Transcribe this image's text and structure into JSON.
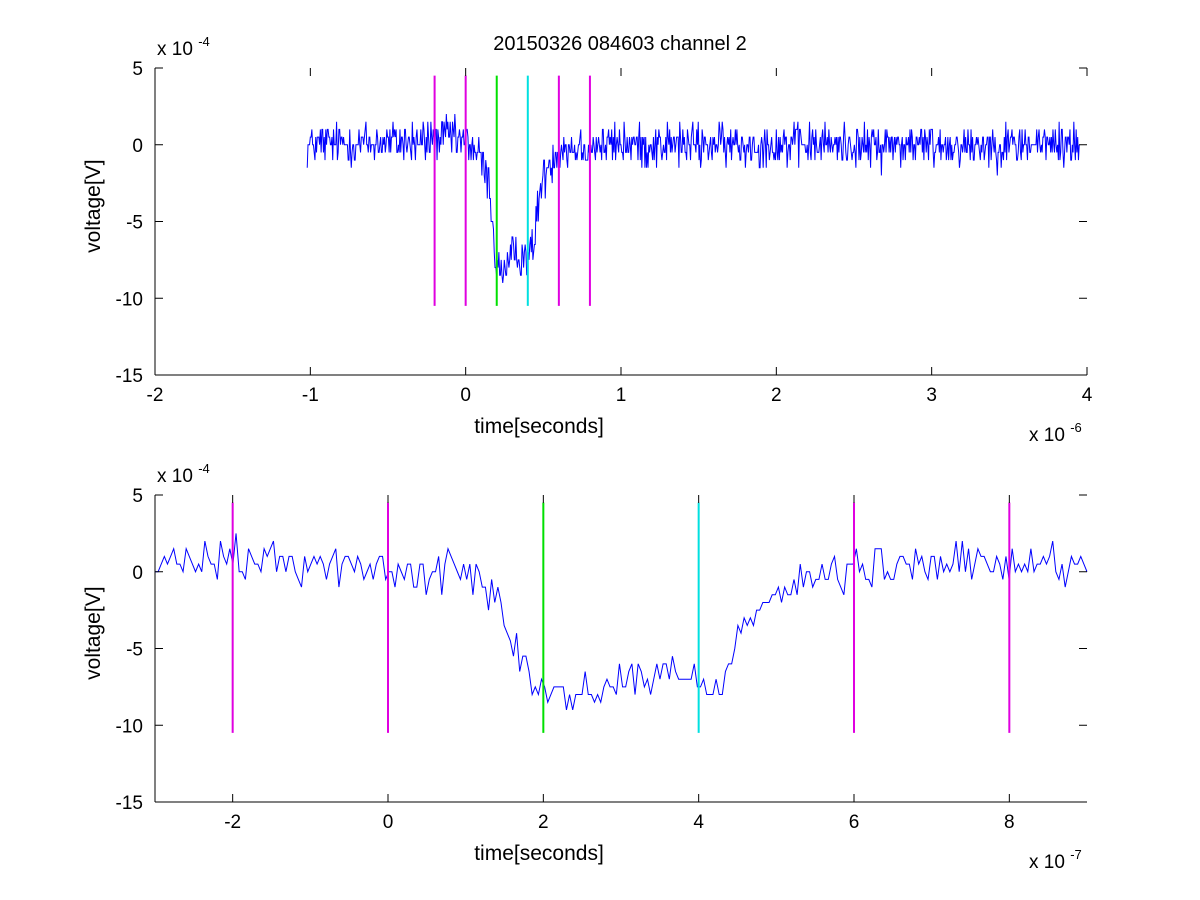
{
  "title": "20150326 084603 channel 2",
  "chart_data": [
    {
      "type": "line",
      "title": "20150326 084603 channel 2",
      "xlabel": "time[seconds]",
      "ylabel": "voltage[V]",
      "x_scale_label": "x 10",
      "x_scale_exp": "-6",
      "y_scale_label": "x 10",
      "y_scale_exp": "-4",
      "xlim": [
        -2,
        4
      ],
      "ylim": [
        -15,
        5
      ],
      "xticks": [
        -2,
        -1,
        0,
        1,
        2,
        3,
        4
      ],
      "yticks": [
        -15,
        -10,
        -5,
        0,
        5
      ],
      "grid": false,
      "signal": {
        "color": "#0000ff",
        "x_start": -1.02,
        "x_end": 3.95,
        "samples": 1000,
        "baseline_noise": 1.0,
        "profile": [
          [
            -1.02,
            0
          ],
          [
            -0.25,
            0.2
          ],
          [
            -0.12,
            0.6
          ],
          [
            0.0,
            0.2
          ],
          [
            0.08,
            -0.5
          ],
          [
            0.15,
            -2.5
          ],
          [
            0.2,
            -8.0
          ],
          [
            0.26,
            -8.3
          ],
          [
            0.3,
            -7.3
          ],
          [
            0.4,
            -7.1
          ],
          [
            0.44,
            -7.0
          ],
          [
            0.46,
            -4.0
          ],
          [
            0.52,
            -1.5
          ],
          [
            0.6,
            -0.2
          ],
          [
            1.0,
            0
          ],
          [
            3.95,
            0
          ]
        ]
      },
      "markers": [
        {
          "x": -0.2,
          "color": "#e000e0"
        },
        {
          "x": 0.0,
          "color": "#e000e0"
        },
        {
          "x": 0.2,
          "color": "#00e000"
        },
        {
          "x": 0.4,
          "color": "#00e0e0"
        },
        {
          "x": 0.6,
          "color": "#e000e0"
        },
        {
          "x": 0.8,
          "color": "#e000e0"
        }
      ],
      "marker_range": [
        -10.5,
        4.5
      ]
    },
    {
      "type": "line",
      "xlabel": "time[seconds]",
      "ylabel": "voltage[V]",
      "x_scale_label": "x 10",
      "x_scale_exp": "-7",
      "y_scale_label": "x 10",
      "y_scale_exp": "-4",
      "xlim": [
        -3,
        9
      ],
      "ylim": [
        -15,
        5
      ],
      "xticks": [
        -2,
        0,
        2,
        4,
        6,
        8
      ],
      "yticks": [
        -15,
        -10,
        -5,
        0,
        5
      ],
      "grid": false,
      "signal": {
        "color": "#0000ff",
        "x_start": -3.0,
        "x_end": 9.0,
        "samples": 300,
        "baseline_noise": 1.0,
        "profile": [
          [
            -3.0,
            0.3
          ],
          [
            -2.0,
            0.8
          ],
          [
            -1.0,
            0.6
          ],
          [
            0.0,
            0.0
          ],
          [
            1.0,
            0.0
          ],
          [
            1.3,
            -0.5
          ],
          [
            1.5,
            -2.5
          ],
          [
            1.75,
            -6.0
          ],
          [
            2.0,
            -8.0
          ],
          [
            2.4,
            -8.2
          ],
          [
            3.0,
            -7.0
          ],
          [
            3.5,
            -6.7
          ],
          [
            4.0,
            -7.0
          ],
          [
            4.3,
            -7.5
          ],
          [
            4.45,
            -5.0
          ],
          [
            4.6,
            -2.5
          ],
          [
            5.0,
            -1.5
          ],
          [
            5.4,
            -0.5
          ],
          [
            6.0,
            0.0
          ],
          [
            7.0,
            0.5
          ],
          [
            9.0,
            0.5
          ]
        ]
      },
      "markers": [
        {
          "x": -2,
          "color": "#e000e0"
        },
        {
          "x": 0,
          "color": "#e000e0"
        },
        {
          "x": 2,
          "color": "#00e000"
        },
        {
          "x": 4,
          "color": "#00e0e0"
        },
        {
          "x": 6,
          "color": "#e000e0"
        },
        {
          "x": 8,
          "color": "#e000e0"
        }
      ],
      "marker_range": [
        -10.5,
        4.5
      ]
    }
  ]
}
